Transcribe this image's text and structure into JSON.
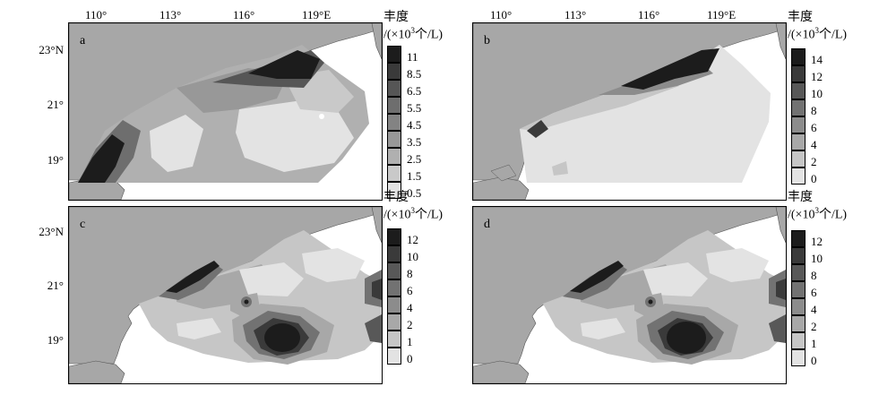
{
  "x_ticks": [
    "110°",
    "113°",
    "116°",
    "119°E"
  ],
  "y_ticks": [
    "23°N",
    "21°",
    "19°"
  ],
  "legend_title": "丰度",
  "legend_unit_prefix": "/(×10",
  "legend_unit_exp": "3",
  "legend_unit_suffix": "个/L)",
  "panels": [
    {
      "tag": "a",
      "legend_labels": [
        "11",
        "8.5",
        "6.5",
        "5.5",
        "4.5",
        "3.5",
        "2.5",
        "1.5",
        "0.5"
      ]
    },
    {
      "tag": "b",
      "legend_labels": [
        "14",
        "12",
        "10",
        "8",
        "6",
        "4",
        "2",
        "0"
      ]
    },
    {
      "tag": "c",
      "legend_labels": [
        "12",
        "10",
        "8",
        "6",
        "4",
        "2",
        "1",
        "0"
      ]
    },
    {
      "tag": "d",
      "legend_labels": [
        "12",
        "10",
        "8",
        "6",
        "4",
        "2",
        "1",
        "0"
      ]
    }
  ],
  "colors": {
    "land": "#a7a7a7",
    "scale9": [
      "#1c1c1c",
      "#3a3a3a",
      "#565656",
      "#6e6e6e",
      "#838383",
      "#989898",
      "#b0b0b0",
      "#c9c9c9",
      "#e3e3e3"
    ],
    "scale8": [
      "#1c1c1c",
      "#3a3a3a",
      "#585858",
      "#727272",
      "#8c8c8c",
      "#a8a8a8",
      "#c6c6c6",
      "#e3e3e3"
    ]
  }
}
